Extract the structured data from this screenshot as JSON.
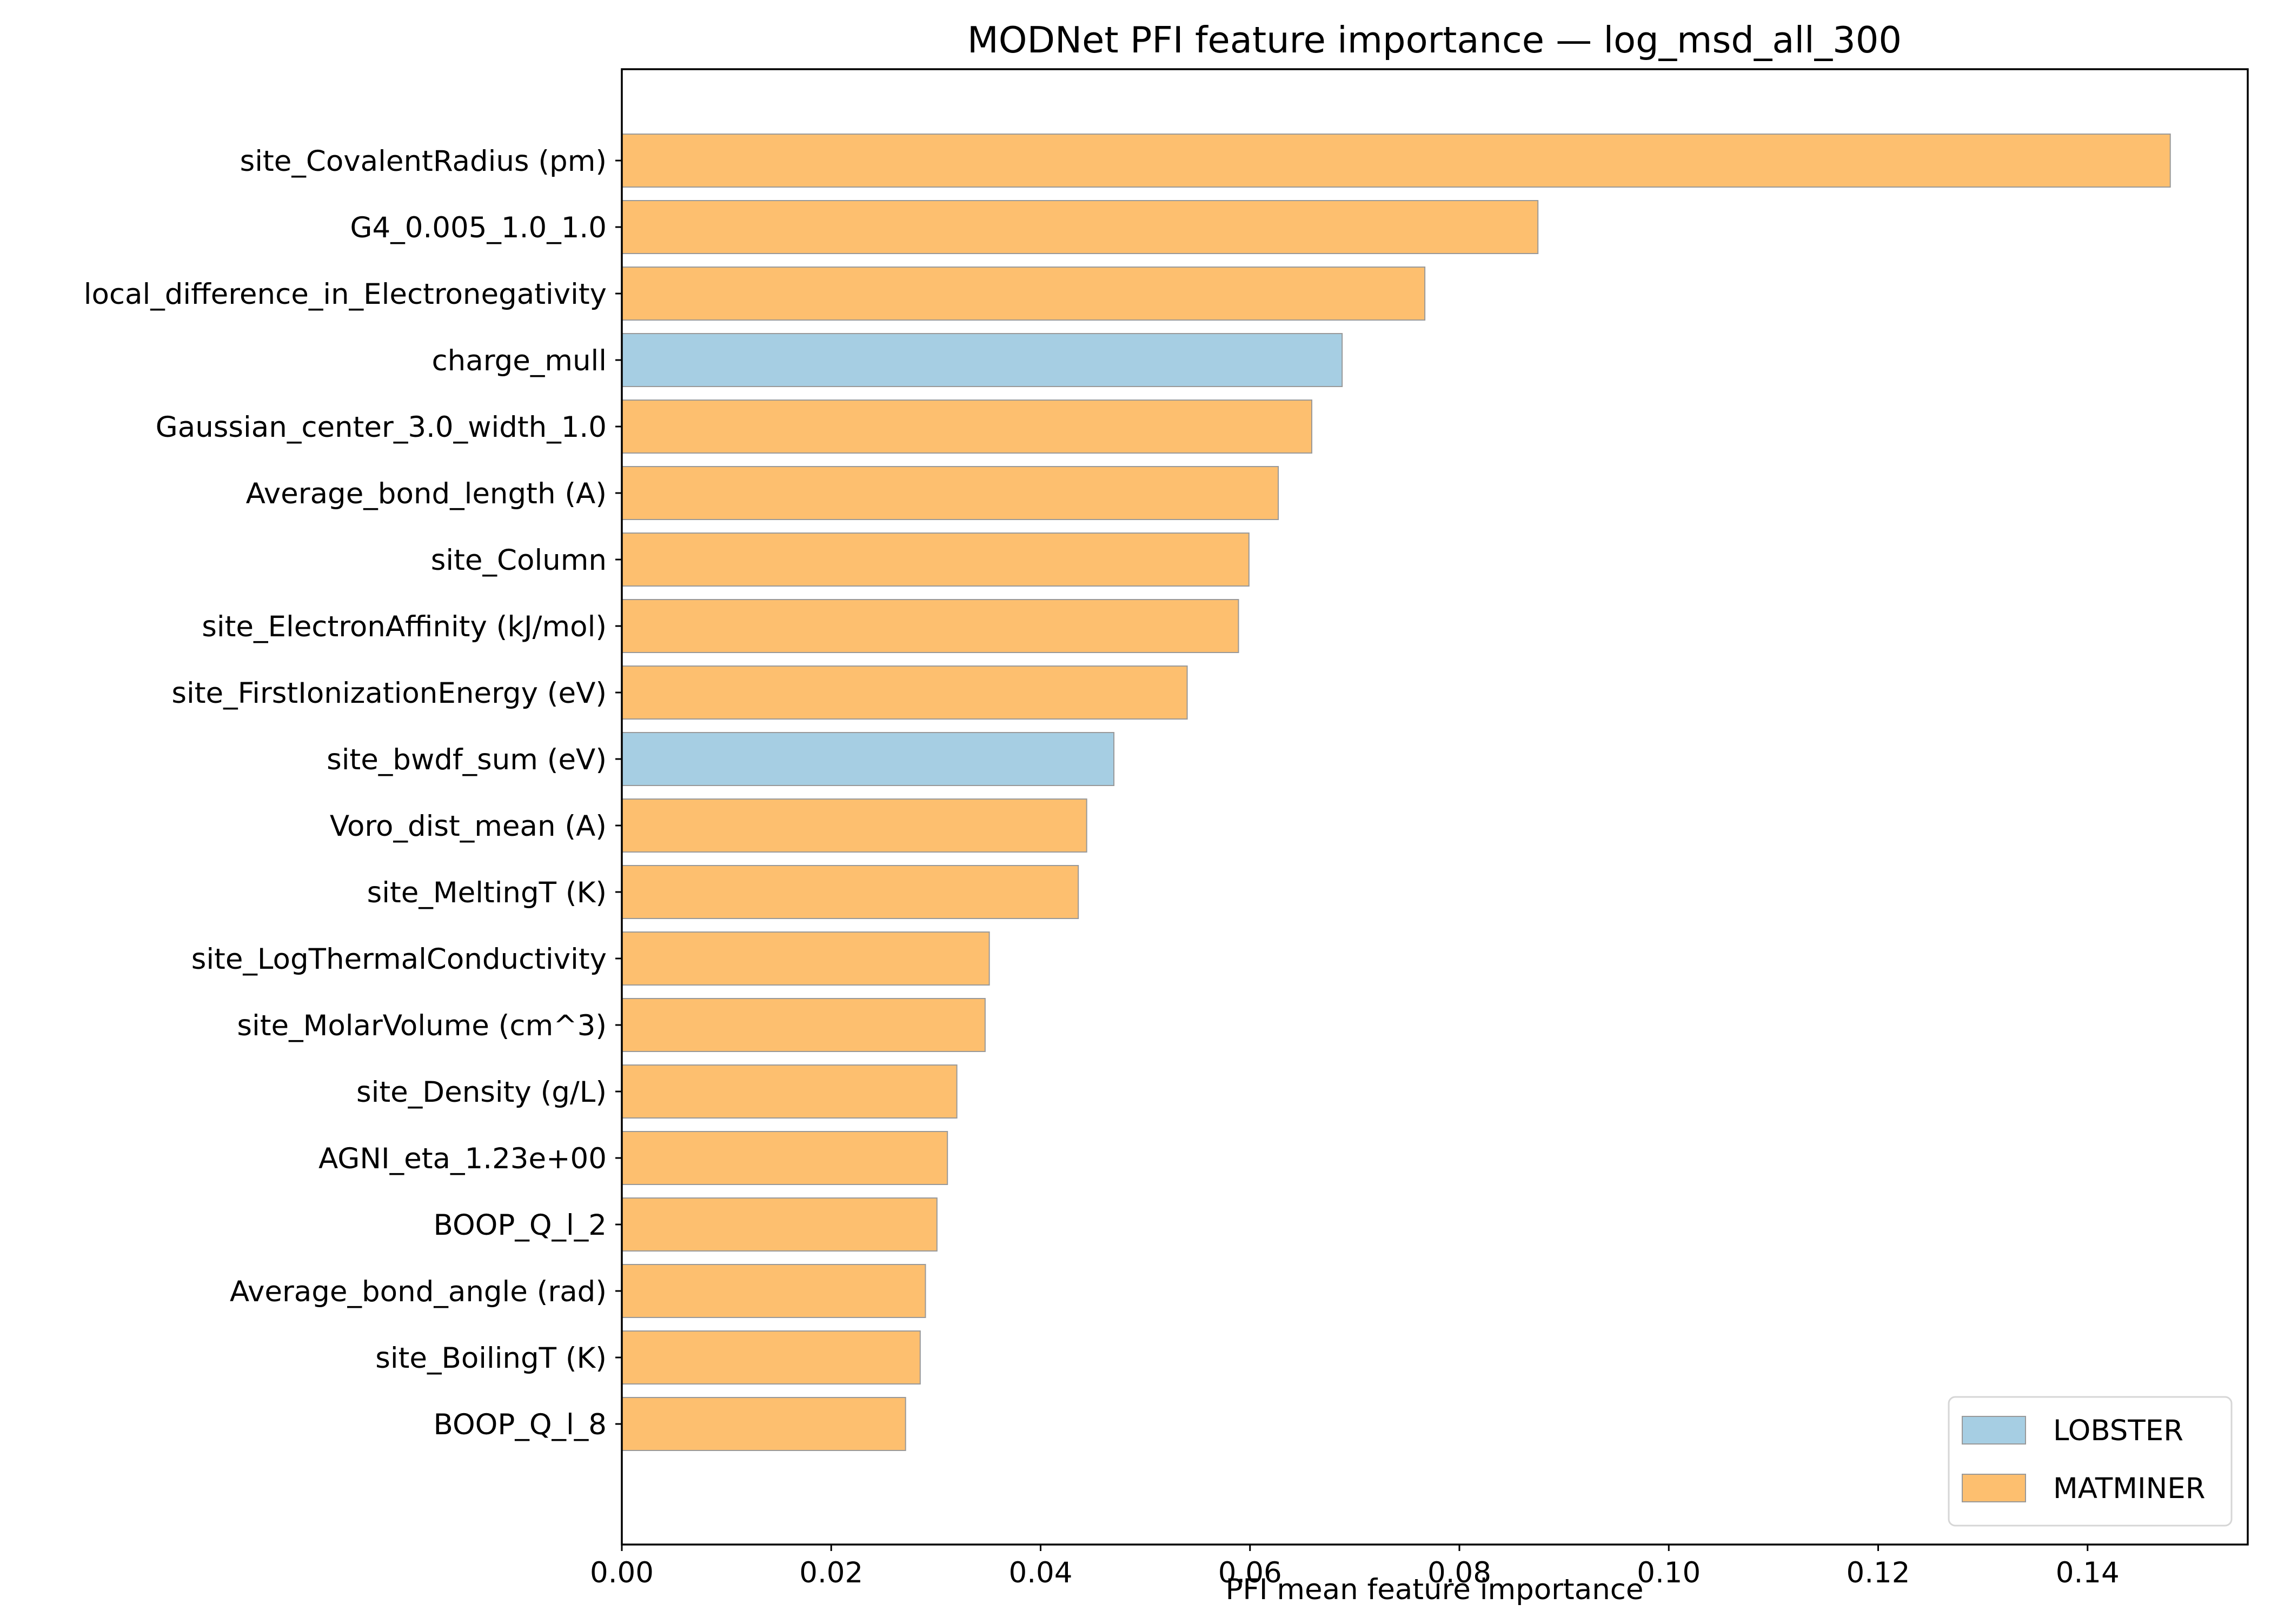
{
  "chart_data": {
    "type": "bar",
    "orientation": "horizontal",
    "title": "MODNet PFI feature importance — log_msd_all_300",
    "xlabel": "PFI mean feature importance",
    "ylabel": "",
    "xlim": [
      0.0,
      0.1553
    ],
    "xticks": [
      0.0,
      0.02,
      0.04,
      0.06,
      0.08,
      0.1,
      0.12,
      0.14
    ],
    "xtick_labels": [
      "0.00",
      "0.02",
      "0.04",
      "0.06",
      "0.08",
      "0.10",
      "0.12",
      "0.14"
    ],
    "grid": false,
    "legend": {
      "position": "lower right",
      "entries": [
        {
          "label": "LOBSTER",
          "color": "#a6cee3"
        },
        {
          "label": "MATMINER",
          "color": "#fdbf6f"
        }
      ]
    },
    "categories": [
      "site_CovalentRadius (pm)",
      "G4_0.005_1.0_1.0",
      "local_difference_in_Electronegativity",
      "charge_mull",
      "Gaussian_center_3.0_width_1.0",
      "Average_bond_length (A)",
      "site_Column",
      "site_ElectronAffinity (kJ/mol)",
      "site_FirstIonizationEnergy (eV)",
      "site_bwdf_sum (eV)",
      "Voro_dist_mean (A)",
      "site_MeltingT (K)",
      "site_LogThermalConductivity",
      "site_MolarVolume (cm^3)",
      "site_Density (g/L)",
      "AGNI_eta_1.23e+00",
      "BOOP_Q_l_2",
      "Average_bond_angle (rad)",
      "site_BoilingT (K)",
      "BOOP_Q_l_8"
    ],
    "values": [
      0.1479,
      0.0875,
      0.0767,
      0.0688,
      0.0659,
      0.0627,
      0.0599,
      0.0589,
      0.054,
      0.047,
      0.0444,
      0.0436,
      0.0351,
      0.0347,
      0.032,
      0.0311,
      0.0301,
      0.029,
      0.0285,
      0.0271
    ],
    "groups": [
      "MATMINER",
      "MATMINER",
      "MATMINER",
      "LOBSTER",
      "MATMINER",
      "MATMINER",
      "MATMINER",
      "MATMINER",
      "MATMINER",
      "LOBSTER",
      "MATMINER",
      "MATMINER",
      "MATMINER",
      "MATMINER",
      "MATMINER",
      "MATMINER",
      "MATMINER",
      "MATMINER",
      "MATMINER",
      "MATMINER"
    ],
    "colors": {
      "LOBSTER": "#a6cee3",
      "MATMINER": "#fdbf6f",
      "bar_edge": "#999999"
    }
  }
}
